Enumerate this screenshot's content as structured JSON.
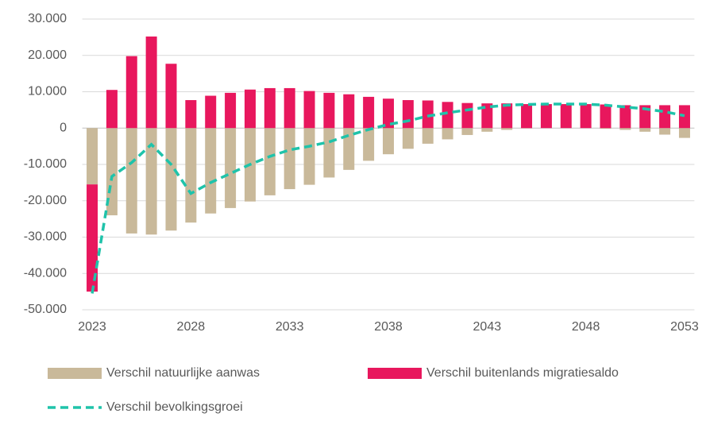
{
  "chart_data": {
    "type": "bar",
    "x": [
      2023,
      2024,
      2025,
      2026,
      2027,
      2028,
      2029,
      2030,
      2031,
      2032,
      2033,
      2034,
      2035,
      2036,
      2037,
      2038,
      2039,
      2040,
      2041,
      2042,
      2043,
      2044,
      2045,
      2046,
      2047,
      2048,
      2049,
      2050,
      2051,
      2052,
      2053
    ],
    "series": [
      {
        "name": "Verschil natuurlijke aanwas",
        "color": "#c9b99a",
        "values": [
          -15500,
          -24000,
          -29000,
          -29300,
          -28200,
          -26000,
          -23500,
          -22000,
          -20200,
          -18500,
          -16800,
          -15600,
          -13600,
          -11500,
          -9000,
          -7200,
          -5700,
          -4300,
          -3100,
          -1900,
          -1000,
          -500,
          -100,
          0,
          0,
          0,
          -200,
          -500,
          -1000,
          -1800,
          -2700
        ]
      },
      {
        "name": "Verschil buitenlands migratiesaldo",
        "color": "#e8175d",
        "values": [
          -29500,
          10500,
          19800,
          25200,
          17700,
          7700,
          8900,
          9700,
          10600,
          11000,
          11000,
          10200,
          9700,
          9300,
          8600,
          8100,
          7700,
          7600,
          7200,
          6900,
          6800,
          6800,
          6600,
          6600,
          6600,
          6600,
          6500,
          6300,
          6300,
          6300,
          6300
        ]
      },
      {
        "name": "Verschil bevolkingsgroei",
        "type": "line",
        "dashed": true,
        "color": "#1fc3aa",
        "values": [
          -45500,
          -13300,
          -9500,
          -4500,
          -10000,
          -18000,
          -15000,
          -12500,
          -10000,
          -7800,
          -6000,
          -5000,
          -3800,
          -2000,
          -400,
          1000,
          2000,
          3300,
          4200,
          5000,
          5800,
          6300,
          6500,
          6600,
          6600,
          6600,
          6300,
          5800,
          5300,
          4500,
          3400
        ]
      }
    ],
    "xlim": [
      2022.5,
      2053.5
    ],
    "xticks": [
      2023,
      2028,
      2033,
      2038,
      2043,
      2048,
      2053
    ],
    "ylim": [
      -50000,
      30000
    ],
    "yticks": [
      {
        "value": -50000,
        "label": "-50.000"
      },
      {
        "value": -40000,
        "label": "-40.000"
      },
      {
        "value": -30000,
        "label": "-30.000"
      },
      {
        "value": -20000,
        "label": "-20.000"
      },
      {
        "value": -10000,
        "label": "-10.000"
      },
      0,
      {
        "value": 10000,
        "label": "10.000"
      },
      {
        "value": 20000,
        "label": "20.000"
      },
      {
        "value": 30000,
        "label": "30.000"
      }
    ],
    "grid": true
  }
}
